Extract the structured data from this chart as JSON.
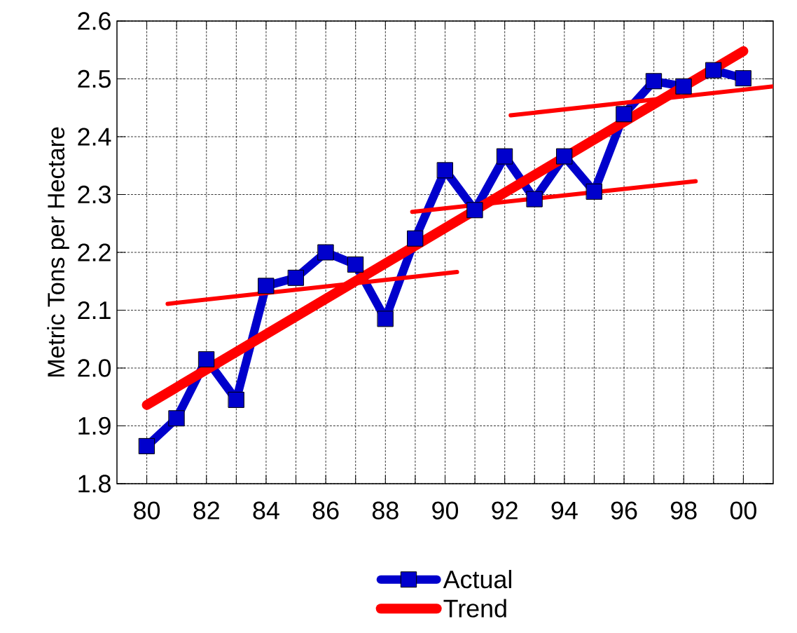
{
  "chart_data": {
    "type": "line",
    "ylabel": "Metric Tons per Hectare",
    "xlim": [
      1979,
      2001
    ],
    "ylim": [
      1.8,
      2.6
    ],
    "xticks": [
      {
        "value": 1980,
        "label": "80"
      },
      {
        "value": 1981,
        "label": null
      },
      {
        "value": 1982,
        "label": "82"
      },
      {
        "value": 1983,
        "label": null
      },
      {
        "value": 1984,
        "label": "84"
      },
      {
        "value": 1985,
        "label": null
      },
      {
        "value": 1986,
        "label": "86"
      },
      {
        "value": 1987,
        "label": null
      },
      {
        "value": 1988,
        "label": "88"
      },
      {
        "value": 1989,
        "label": null
      },
      {
        "value": 1990,
        "label": "90"
      },
      {
        "value": 1991,
        "label": null
      },
      {
        "value": 1992,
        "label": "92"
      },
      {
        "value": 1993,
        "label": null
      },
      {
        "value": 1994,
        "label": "94"
      },
      {
        "value": 1995,
        "label": null
      },
      {
        "value": 1996,
        "label": "96"
      },
      {
        "value": 1997,
        "label": null
      },
      {
        "value": 1998,
        "label": "98"
      },
      {
        "value": 1999,
        "label": null
      },
      {
        "value": 2000,
        "label": "00"
      }
    ],
    "yticks": [
      {
        "value": 1.8,
        "label": "1.8"
      },
      {
        "value": 1.9,
        "label": "1.9"
      },
      {
        "value": 2.0,
        "label": "2.0"
      },
      {
        "value": 2.1,
        "label": "2.1"
      },
      {
        "value": 2.2,
        "label": "2.2"
      },
      {
        "value": 2.3,
        "label": "2.3"
      },
      {
        "value": 2.4,
        "label": "2.4"
      },
      {
        "value": 2.5,
        "label": "2.5"
      },
      {
        "value": 2.6,
        "label": "2.6"
      }
    ],
    "x": [
      1980,
      1981,
      1982,
      1983,
      1984,
      1985,
      1986,
      1987,
      1988,
      1989,
      1990,
      1991,
      1992,
      1993,
      1994,
      1995,
      1996,
      1997,
      1998,
      1999,
      2000
    ],
    "grid": true,
    "legend": "bottom",
    "line_style": "solid",
    "series": [
      {
        "name": "Actual",
        "color": "#0000cc",
        "marker": "square",
        "values": [
          1.865,
          1.913,
          2.015,
          1.945,
          2.142,
          2.156,
          2.2,
          2.179,
          2.085,
          2.224,
          2.342,
          2.273,
          2.366,
          2.292,
          2.366,
          2.305,
          2.439,
          2.496,
          2.487,
          2.515,
          2.501
        ]
      },
      {
        "name": "Trend",
        "color": "#ff0000",
        "marker": "none",
        "x": [
          1980,
          2000
        ],
        "values": [
          1.936,
          2.548
        ]
      },
      {
        "color": "#ff0000",
        "marker": "none",
        "x": [
          1980.7,
          1990.4
        ],
        "values": [
          2.111,
          2.166
        ]
      },
      {
        "color": "#ff0000",
        "marker": "none",
        "x": [
          1988.9,
          1998.4
        ],
        "values": [
          2.27,
          2.323
        ]
      },
      {
        "color": "#ff0000",
        "marker": "none",
        "x": [
          1992.2,
          2001
        ],
        "values": [
          2.437,
          2.487
        ]
      }
    ]
  }
}
